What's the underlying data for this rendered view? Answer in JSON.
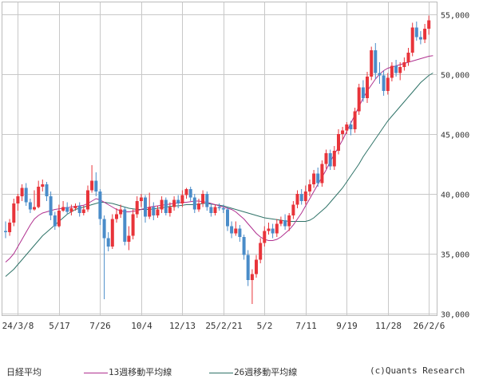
{
  "chart_data": {
    "type": "candlestick",
    "title": "日経平均",
    "credit": "(c)Quants Research",
    "y_ticks": [
      "55,000",
      "50,000",
      "45,000",
      "40,000",
      "35,000",
      "30,000"
    ],
    "y_tick_values": [
      55000,
      50000,
      45000,
      40000,
      35000,
      30000
    ],
    "ylim": [
      29500,
      56000
    ],
    "x_ticks": [
      "24/3/8",
      "5/17",
      "7/26",
      "10/4",
      "12/13",
      "25/2/21",
      "5/2",
      "7/11",
      "9/19",
      "11/28",
      "26/2/6"
    ],
    "x_tick_index": [
      3,
      13,
      23,
      33,
      43,
      53,
      63,
      73,
      83,
      93,
      103
    ],
    "grid": true,
    "colors": {
      "up": "#e8343a",
      "down": "#4a8cc9",
      "ma13": "#b0308f",
      "ma26": "#2f7368",
      "grid": "#c8c8c8"
    },
    "series": [
      {
        "name": "13週移動平均線",
        "color": "#b0308f",
        "values": [
          34300,
          34600,
          35000,
          35600,
          36200,
          36800,
          37400,
          37900,
          38200,
          38400,
          38500,
          38600,
          38700,
          38750,
          38800,
          38850,
          38900,
          38950,
          39000,
          39050,
          39200,
          39400,
          39600,
          39500,
          39300,
          39100,
          38900,
          38700,
          38600,
          38500,
          38500,
          38550,
          38600,
          38700,
          38800,
          38900,
          38950,
          39000,
          39050,
          39100,
          39150,
          39200,
          39250,
          39300,
          39300,
          39350,
          39400,
          39400,
          39350,
          39300,
          39200,
          39100,
          39000,
          38900,
          38800,
          38700,
          38500,
          38200,
          37900,
          37500,
          37100,
          36700,
          36400,
          36200,
          36100,
          36100,
          36200,
          36400,
          36700,
          37000,
          37400,
          37900,
          38400,
          39000,
          39600,
          40200,
          40800,
          41400,
          42000,
          42700,
          43300,
          43900,
          44500,
          45200,
          45900,
          46600,
          47300,
          48000,
          48600,
          49100,
          49600,
          50000,
          50300,
          50500,
          50600,
          50700,
          50800,
          50900,
          51000,
          51100,
          51200,
          51300,
          51400,
          51500,
          51550
        ]
      },
      {
        "name": "26週移動平均線",
        "color": "#2f7368",
        "values": [
          33100,
          33400,
          33700,
          34100,
          34500,
          34900,
          35300,
          35700,
          36100,
          36500,
          36800,
          37100,
          37400,
          37700,
          38000,
          38300,
          38500,
          38700,
          38800,
          38900,
          39000,
          39100,
          39200,
          39300,
          39300,
          39250,
          39200,
          39100,
          39000,
          38900,
          38800,
          38750,
          38700,
          38700,
          38700,
          38700,
          38750,
          38800,
          38850,
          38900,
          38950,
          39000,
          39000,
          39050,
          39100,
          39100,
          39100,
          39150,
          39200,
          39200,
          39150,
          39100,
          39050,
          39000,
          38900,
          38800,
          38700,
          38600,
          38500,
          38400,
          38300,
          38200,
          38100,
          38000,
          37950,
          37900,
          37850,
          37800,
          37750,
          37700,
          37700,
          37700,
          37700,
          37700,
          37800,
          38000,
          38300,
          38600,
          38900,
          39300,
          39700,
          40100,
          40500,
          41000,
          41500,
          42000,
          42500,
          43100,
          43600,
          44100,
          44600,
          45100,
          45600,
          46100,
          46500,
          46900,
          47300,
          47700,
          48100,
          48500,
          48900,
          49300,
          49600,
          49900,
          50100
        ]
      }
    ],
    "ohlc": [
      [
        36900,
        36800,
        37700,
        36300
      ],
      [
        36800,
        37600,
        37900,
        36500
      ],
      [
        37600,
        39200,
        39600,
        37300
      ],
      [
        39200,
        39800,
        40000,
        38600
      ],
      [
        39800,
        40500,
        40800,
        39400
      ],
      [
        40500,
        39300,
        40900,
        39000
      ],
      [
        39300,
        38700,
        39600,
        38400
      ],
      [
        38700,
        38900,
        40300,
        38600
      ],
      [
        38900,
        40600,
        41100,
        38800
      ],
      [
        40600,
        40800,
        41200,
        40200
      ],
      [
        40800,
        39800,
        41000,
        39400
      ],
      [
        39800,
        38200,
        40200,
        37800
      ],
      [
        38200,
        37300,
        38500,
        37000
      ],
      [
        37300,
        38600,
        39100,
        37200
      ],
      [
        38600,
        38900,
        39400,
        38500
      ],
      [
        38900,
        38500,
        39300,
        38300
      ],
      [
        38500,
        38800,
        39100,
        38200
      ],
      [
        38800,
        39000,
        39200,
        38600
      ],
      [
        39000,
        38400,
        39300,
        38100
      ],
      [
        38400,
        38700,
        39000,
        38200
      ],
      [
        38700,
        40300,
        40700,
        38500
      ],
      [
        40300,
        41100,
        42400,
        40100
      ],
      [
        41100,
        40200,
        41800,
        39800
      ],
      [
        40200,
        37900,
        40400,
        37400
      ],
      [
        37900,
        36300,
        38200,
        31200
      ],
      [
        36300,
        35600,
        36800,
        35200
      ],
      [
        35600,
        37900,
        38300,
        35400
      ],
      [
        37900,
        38300,
        38800,
        37600
      ],
      [
        38300,
        38700,
        39100,
        38000
      ],
      [
        38700,
        36000,
        38900,
        35700
      ],
      [
        36000,
        36500,
        37300,
        35300
      ],
      [
        36500,
        38300,
        38700,
        36200
      ],
      [
        38300,
        39400,
        39800,
        38000
      ],
      [
        39400,
        39700,
        40000,
        38900
      ],
      [
        39700,
        38100,
        39900,
        37600
      ],
      [
        38100,
        38900,
        40100,
        37900
      ],
      [
        38900,
        38200,
        39300,
        37800
      ],
      [
        38200,
        38700,
        39000,
        38000
      ],
      [
        38700,
        39500,
        39800,
        38400
      ],
      [
        39500,
        38400,
        39700,
        38200
      ],
      [
        38400,
        38900,
        39300,
        38100
      ],
      [
        38900,
        39500,
        39800,
        38600
      ],
      [
        39500,
        39200,
        39900,
        38800
      ],
      [
        39200,
        39900,
        40300,
        38900
      ],
      [
        39900,
        40400,
        40500,
        39600
      ],
      [
        40400,
        39700,
        40600,
        39400
      ],
      [
        39700,
        38700,
        40000,
        38400
      ],
      [
        38700,
        39200,
        39600,
        38500
      ],
      [
        39200,
        40000,
        40300,
        38900
      ],
      [
        40000,
        38900,
        40200,
        38600
      ],
      [
        38900,
        38400,
        39200,
        38100
      ],
      [
        38400,
        38900,
        39100,
        38200
      ],
      [
        38900,
        38800,
        39200,
        38600
      ],
      [
        38800,
        38700,
        39100,
        38400
      ],
      [
        38700,
        37300,
        38900,
        36900
      ],
      [
        37300,
        36700,
        37700,
        36300
      ],
      [
        36700,
        37100,
        37700,
        36500
      ],
      [
        37100,
        36400,
        37400,
        36000
      ],
      [
        36400,
        34900,
        36600,
        34500
      ],
      [
        34900,
        32800,
        35300,
        32300
      ],
      [
        32800,
        33300,
        33700,
        30800
      ],
      [
        33300,
        34500,
        34900,
        33000
      ],
      [
        34500,
        35900,
        36300,
        34200
      ],
      [
        35900,
        36900,
        37300,
        35600
      ],
      [
        36900,
        37100,
        37600,
        36600
      ],
      [
        37100,
        36700,
        37500,
        36300
      ],
      [
        36700,
        37500,
        37900,
        36400
      ],
      [
        37500,
        37800,
        38100,
        37300
      ],
      [
        37800,
        37300,
        38300,
        37000
      ],
      [
        37300,
        38200,
        38400,
        36900
      ],
      [
        38200,
        39100,
        39400,
        37900
      ],
      [
        39100,
        40000,
        40300,
        38800
      ],
      [
        40000,
        39400,
        40400,
        39100
      ],
      [
        39400,
        40200,
        40700,
        39100
      ],
      [
        40200,
        40800,
        41200,
        39800
      ],
      [
        40800,
        41700,
        42000,
        40500
      ],
      [
        41700,
        40900,
        42200,
        40600
      ],
      [
        40900,
        42500,
        42800,
        40600
      ],
      [
        42500,
        43400,
        43700,
        42100
      ],
      [
        43400,
        42300,
        43700,
        42000
      ],
      [
        42300,
        43600,
        44000,
        42000
      ],
      [
        43600,
        45000,
        45400,
        43300
      ],
      [
        45000,
        45300,
        45600,
        44500
      ],
      [
        45300,
        45800,
        46000,
        45000
      ],
      [
        45800,
        45400,
        46100,
        44900
      ],
      [
        45400,
        46900,
        47200,
        45100
      ],
      [
        46900,
        48900,
        49200,
        46600
      ],
      [
        48900,
        48000,
        49500,
        47700
      ],
      [
        48000,
        49800,
        50200,
        47600
      ],
      [
        49800,
        52000,
        52300,
        49500
      ],
      [
        52000,
        50100,
        52600,
        49600
      ],
      [
        50100,
        49900,
        51000,
        49200
      ],
      [
        49900,
        48600,
        50300,
        48200
      ],
      [
        48600,
        49700,
        50100,
        48300
      ],
      [
        49700,
        50700,
        51000,
        49400
      ],
      [
        50700,
        50100,
        51200,
        49800
      ],
      [
        50100,
        50600,
        51000,
        49500
      ],
      [
        50600,
        51000,
        51400,
        50300
      ],
      [
        51000,
        51800,
        52200,
        50700
      ],
      [
        51800,
        53900,
        54300,
        51500
      ],
      [
        53900,
        53100,
        54400,
        52800
      ],
      [
        53100,
        52900,
        53600,
        52500
      ],
      [
        52900,
        53800,
        54200,
        52600
      ],
      [
        53800,
        54500,
        54900,
        53300
      ]
    ]
  },
  "legend": {
    "title": "日経平均",
    "ma13": "13週移動平均線",
    "ma26": "26週移動平均線",
    "credit": "(c)Quants Research",
    "ma13_color": "#b0308f",
    "ma26_color": "#2f7368"
  }
}
